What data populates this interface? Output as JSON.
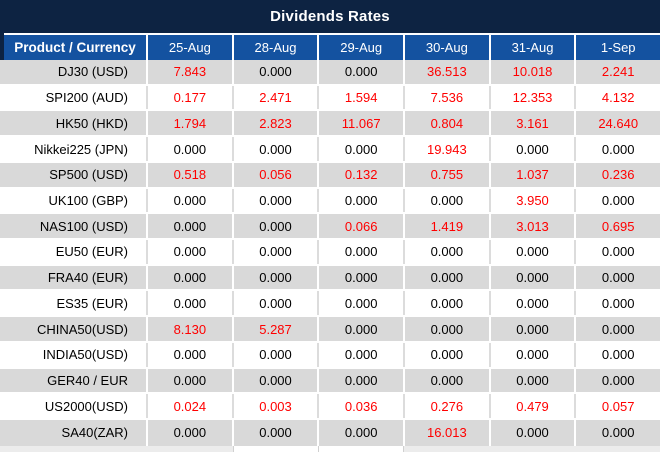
{
  "colors": {
    "title_bg": "#0D2342",
    "header_bg": "#1452A0",
    "stripe_gray": "#D9D9D9",
    "value_red": "#FF0000",
    "text_black": "#000000",
    "header_text": "#FFFFFF"
  },
  "chart_data": {
    "type": "table",
    "title": "Dividends Rates",
    "columns": [
      "Product / Currency",
      "25-Aug",
      "28-Aug",
      "29-Aug",
      "30-Aug",
      "31-Aug",
      "1-Sep"
    ],
    "layout": {
      "striped": true,
      "stripe_start": "gray",
      "value_color_rule": "red = non-zero dividend, black = 0.000"
    },
    "rows": [
      {
        "label": "DJ30 (USD)",
        "values": [
          "7.843",
          "0.000",
          "0.000",
          "36.513",
          "10.018",
          "2.241"
        ],
        "red": [
          true,
          false,
          false,
          true,
          true,
          true
        ]
      },
      {
        "label": "SPI200 (AUD)",
        "values": [
          "0.177",
          "2.471",
          "1.594",
          "7.536",
          "12.353",
          "4.132"
        ],
        "red": [
          true,
          true,
          true,
          true,
          true,
          true
        ]
      },
      {
        "label": "HK50 (HKD)",
        "values": [
          "1.794",
          "2.823",
          "11.067",
          "0.804",
          "3.161",
          "24.640"
        ],
        "red": [
          true,
          true,
          true,
          true,
          true,
          true
        ]
      },
      {
        "label": "Nikkei225 (JPN)",
        "values": [
          "0.000",
          "0.000",
          "0.000",
          "19.943",
          "0.000",
          "0.000"
        ],
        "red": [
          false,
          false,
          false,
          true,
          false,
          false
        ]
      },
      {
        "label": "SP500 (USD)",
        "values": [
          "0.518",
          "0.056",
          "0.132",
          "0.755",
          "1.037",
          "0.236"
        ],
        "red": [
          true,
          true,
          true,
          true,
          true,
          true
        ]
      },
      {
        "label": "UK100 (GBP)",
        "values": [
          "0.000",
          "0.000",
          "0.000",
          "0.000",
          "3.950",
          "0.000"
        ],
        "red": [
          false,
          false,
          false,
          false,
          true,
          false
        ]
      },
      {
        "label": "NAS100 (USD)",
        "values": [
          "0.000",
          "0.000",
          "0.066",
          "1.419",
          "3.013",
          "0.695"
        ],
        "red": [
          false,
          false,
          true,
          true,
          true,
          true
        ]
      },
      {
        "label": "EU50 (EUR)",
        "values": [
          "0.000",
          "0.000",
          "0.000",
          "0.000",
          "0.000",
          "0.000"
        ],
        "red": [
          false,
          false,
          false,
          false,
          false,
          false
        ]
      },
      {
        "label": "FRA40 (EUR)",
        "values": [
          "0.000",
          "0.000",
          "0.000",
          "0.000",
          "0.000",
          "0.000"
        ],
        "red": [
          false,
          false,
          false,
          false,
          false,
          false
        ]
      },
      {
        "label": "ES35 (EUR)",
        "values": [
          "0.000",
          "0.000",
          "0.000",
          "0.000",
          "0.000",
          "0.000"
        ],
        "red": [
          false,
          false,
          false,
          false,
          false,
          false
        ]
      },
      {
        "label": "CHINA50(USD)",
        "values": [
          "8.130",
          "5.287",
          "0.000",
          "0.000",
          "0.000",
          "0.000"
        ],
        "red": [
          true,
          true,
          false,
          false,
          false,
          false
        ]
      },
      {
        "label": "INDIA50(USD)",
        "values": [
          "0.000",
          "0.000",
          "0.000",
          "0.000",
          "0.000",
          "0.000"
        ],
        "red": [
          false,
          false,
          false,
          false,
          false,
          false
        ]
      },
      {
        "label": "GER40 / EUR",
        "values": [
          "0.000",
          "0.000",
          "0.000",
          "0.000",
          "0.000",
          "0.000"
        ],
        "red": [
          false,
          false,
          false,
          false,
          false,
          false
        ]
      },
      {
        "label": "US2000(USD)",
        "values": [
          "0.024",
          "0.003",
          "0.036",
          "0.276",
          "0.479",
          "0.057"
        ],
        "red": [
          true,
          true,
          true,
          true,
          true,
          true
        ]
      },
      {
        "label": "SA40(ZAR)",
        "values": [
          "0.000",
          "0.000",
          "0.000",
          "16.013",
          "0.000",
          "0.000"
        ],
        "red": [
          false,
          false,
          false,
          true,
          false,
          false
        ]
      }
    ]
  }
}
